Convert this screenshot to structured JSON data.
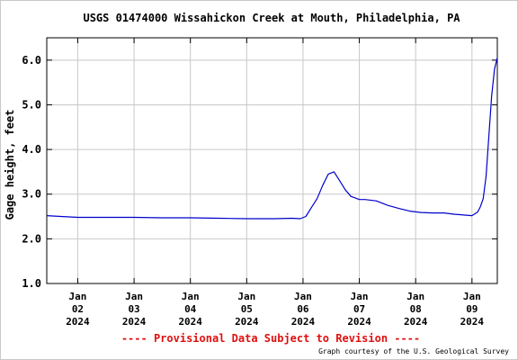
{
  "chart_data": {
    "type": "line",
    "title": "USGS 01474000 Wissahickon Creek at Mouth, Philadelphia, PA",
    "ylabel": "Gage height, feet",
    "xlabel": "",
    "ylim": [
      1.0,
      6.5
    ],
    "xlim": [
      0.0,
      7.45
    ],
    "yticks": [
      "1.0",
      "2.0",
      "3.0",
      "4.0",
      "5.0",
      "6.0"
    ],
    "ytick_values": [
      1.0,
      2.0,
      3.0,
      4.0,
      5.0,
      6.0
    ],
    "xticks": [
      {
        "x": 0,
        "lines": [
          "Jan",
          "02",
          "2024"
        ]
      },
      {
        "x": 1,
        "lines": [
          "Jan",
          "03",
          "2024"
        ]
      },
      {
        "x": 2,
        "lines": [
          "Jan",
          "04",
          "2024"
        ]
      },
      {
        "x": 3,
        "lines": [
          "Jan",
          "05",
          "2024"
        ]
      },
      {
        "x": 4,
        "lines": [
          "Jan",
          "06",
          "2024"
        ]
      },
      {
        "x": 5,
        "lines": [
          "Jan",
          "07",
          "2024"
        ]
      },
      {
        "x": 6,
        "lines": [
          "Jan",
          "08",
          "2024"
        ]
      },
      {
        "x": 7,
        "lines": [
          "Jan",
          "09",
          "2024"
        ]
      }
    ],
    "grid": true,
    "series": [
      {
        "color": "#0000cc",
        "x": [
          -0.55,
          -0.3,
          0.0,
          0.5,
          1.0,
          1.5,
          2.0,
          2.5,
          3.0,
          3.5,
          3.8,
          3.95,
          4.05,
          4.15,
          4.25,
          4.35,
          4.45,
          4.55,
          4.65,
          4.75,
          4.85,
          5.0,
          5.1,
          5.3,
          5.5,
          5.7,
          5.9,
          6.1,
          6.3,
          6.5,
          6.7,
          6.9,
          7.0,
          7.1,
          7.15,
          7.2,
          7.25,
          7.3,
          7.35,
          7.4,
          7.45
        ],
        "y": [
          2.52,
          2.5,
          2.48,
          2.48,
          2.48,
          2.47,
          2.47,
          2.46,
          2.45,
          2.45,
          2.46,
          2.45,
          2.5,
          2.7,
          2.9,
          3.2,
          3.45,
          3.5,
          3.3,
          3.1,
          2.95,
          2.88,
          2.88,
          2.85,
          2.75,
          2.68,
          2.62,
          2.59,
          2.58,
          2.58,
          2.55,
          2.53,
          2.52,
          2.6,
          2.72,
          2.9,
          3.4,
          4.3,
          5.2,
          5.8,
          6.05
        ]
      }
    ]
  },
  "notice": "---- Provisional Data Subject to Revision ----",
  "credit": "Graph courtesy of the U.S. Geological Survey"
}
